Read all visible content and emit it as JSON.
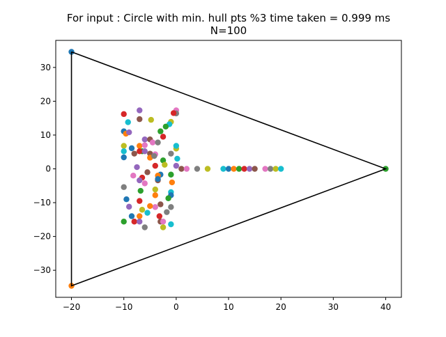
{
  "chart_data": {
    "type": "scatter",
    "title": "For input : Circle with min. hull pts %3 time taken = 0.999 ms",
    "subtitle": "N=100",
    "xlim": [
      -23,
      43
    ],
    "ylim": [
      -38,
      38
    ],
    "xticks": [
      -20,
      -10,
      0,
      10,
      20,
      30,
      40
    ],
    "yticks": [
      -30,
      -20,
      -10,
      0,
      10,
      20,
      30
    ],
    "grid": false,
    "colors": [
      "#1f77b4",
      "#ff7f0e",
      "#2ca02c",
      "#d62728",
      "#9467bd",
      "#8c564b",
      "#e377c2",
      "#7f7f7f",
      "#bcbd22",
      "#17becf"
    ],
    "hull": {
      "color": "#000000",
      "points": [
        [
          -20,
          34.6
        ],
        [
          40,
          0
        ],
        [
          -20,
          -34.6
        ],
        [
          -20,
          34.6
        ]
      ]
    },
    "points": [
      [
        -20,
        34.6
      ],
      [
        -20,
        -34.6
      ],
      [
        40,
        0
      ],
      [
        -10,
        16.2
      ],
      [
        -7,
        17.3
      ],
      [
        -7,
        14.7
      ],
      [
        0,
        17.3
      ],
      [
        0,
        16.4
      ],
      [
        -1,
        13.9
      ],
      [
        -1.3,
        13.2
      ],
      [
        -10,
        11.1
      ],
      [
        -9.6,
        10.4
      ],
      [
        -3,
        11.1
      ],
      [
        -2.5,
        9.5
      ],
      [
        -6,
        8.7
      ],
      [
        -5,
        8.7
      ],
      [
        -4.5,
        7.8
      ],
      [
        -3.5,
        7.8
      ],
      [
        -10,
        6.8
      ],
      [
        -10,
        5.2
      ],
      [
        -8.5,
        6.1
      ],
      [
        -7,
        6.8
      ],
      [
        -6.5,
        5.2
      ],
      [
        -7,
        5.2
      ],
      [
        -6,
        5.2
      ],
      [
        -5,
        4.5
      ],
      [
        -4,
        4.3
      ],
      [
        -1,
        4.5
      ],
      [
        0,
        6.0
      ],
      [
        0,
        6.8
      ],
      [
        -10,
        3.4
      ],
      [
        -5,
        3.3
      ],
      [
        -2.5,
        2.5
      ],
      [
        -4,
        0.9
      ],
      [
        0,
        0.9
      ],
      [
        1,
        0
      ],
      [
        2,
        0
      ],
      [
        4,
        0
      ],
      [
        6,
        0
      ],
      [
        9,
        0
      ],
      [
        10,
        0
      ],
      [
        11,
        0
      ],
      [
        12,
        0
      ],
      [
        13,
        0
      ],
      [
        14,
        0
      ],
      [
        15,
        0
      ],
      [
        17,
        0
      ],
      [
        18,
        0
      ],
      [
        19,
        0
      ],
      [
        20,
        0
      ],
      [
        -3,
        -1.7
      ],
      [
        -3.5,
        -2.0
      ],
      [
        -1,
        -1.7
      ],
      [
        -6.5,
        -2.6
      ],
      [
        -7,
        -3.4
      ],
      [
        -3.5,
        -3.4
      ],
      [
        -6,
        -4.3
      ],
      [
        -10,
        -5.4
      ],
      [
        -4,
        -6.1
      ],
      [
        -1,
        -6.9
      ],
      [
        -1,
        -7.8
      ],
      [
        -4,
        -7.8
      ],
      [
        -1.5,
        -8.7
      ],
      [
        -7,
        -9.5
      ],
      [
        -9,
        -11.2
      ],
      [
        -3,
        -10.5
      ],
      [
        -4,
        -11.3
      ],
      [
        -1,
        -11.3
      ],
      [
        -6.5,
        -12.1
      ],
      [
        -5.5,
        -13.0
      ],
      [
        -8.5,
        -14.0
      ],
      [
        -7,
        -14.0
      ],
      [
        -10,
        -15.6
      ],
      [
        -8,
        -15.6
      ],
      [
        -7,
        -15.6
      ],
      [
        -3,
        -15.6
      ],
      [
        -2.5,
        -15.6
      ],
      [
        -6,
        -17.3
      ],
      [
        -2.5,
        -17.3
      ],
      [
        -1,
        -16.4
      ],
      [
        -3.5,
        -3.0
      ],
      [
        -5,
        -11.0
      ],
      [
        -2,
        12.5
      ],
      [
        -0.5,
        16.5
      ],
      [
        -9,
        10.8
      ],
      [
        -8,
        4.5
      ],
      [
        -6,
        7.0
      ],
      [
        -4.2,
        3.8
      ],
      [
        -2.2,
        1.2
      ],
      [
        0.2,
        3.0
      ],
      [
        -9.5,
        -9.0
      ],
      [
        -0.8,
        -4.0
      ],
      [
        -6.8,
        -6.5
      ],
      [
        -3.2,
        -14.0
      ],
      [
        -7.5,
        0.5
      ],
      [
        -5.5,
        -1.0
      ],
      [
        -8.2,
        -2.0
      ],
      [
        -1.8,
        -12.8
      ],
      [
        -4.8,
        14.5
      ],
      [
        -9.2,
        13.8
      ]
    ]
  }
}
